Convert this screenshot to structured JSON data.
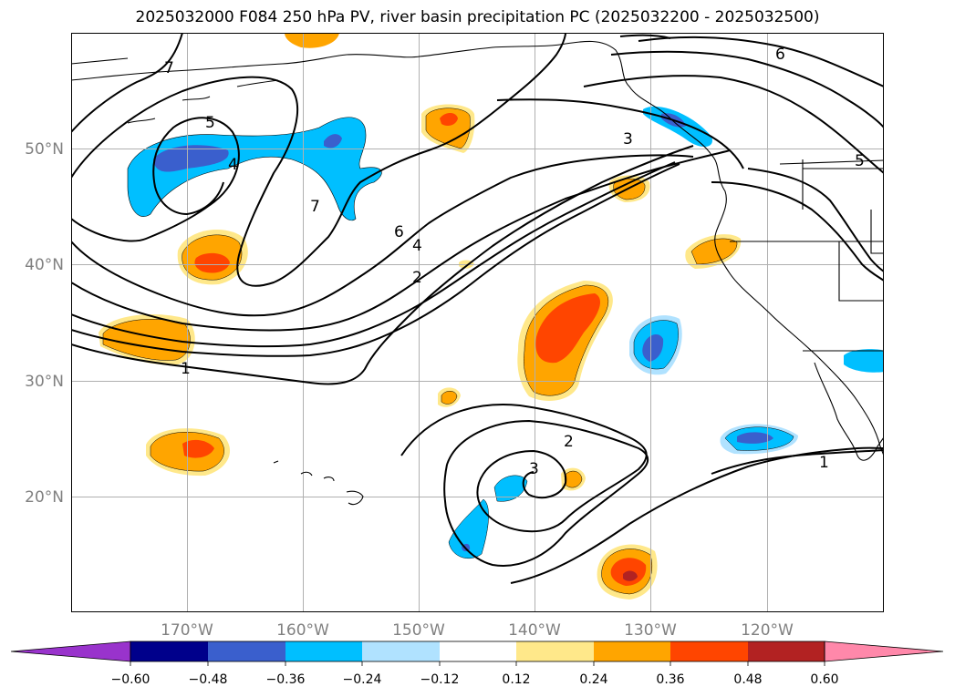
{
  "title": "2025032000 F084 250 hPa PV, river basin precipitation PC (2025032200 - 2025032500)",
  "map": {
    "lat_ticks": [
      {
        "label": "50°N",
        "lat": 50
      },
      {
        "label": "40°N",
        "lat": 40
      },
      {
        "label": "30°N",
        "lat": 30
      },
      {
        "label": "20°N",
        "lat": 20
      }
    ],
    "lon_ticks": [
      {
        "label": "170°W",
        "lon": -170
      },
      {
        "label": "160°W",
        "lon": -160
      },
      {
        "label": "150°W",
        "lon": -150
      },
      {
        "label": "140°W",
        "lon": -140
      },
      {
        "label": "130°W",
        "lon": -130
      },
      {
        "label": "120°W",
        "lon": -120
      }
    ],
    "contour_labels": [
      "7",
      "5",
      "4",
      "7",
      "6",
      "4",
      "2",
      "1",
      "3",
      "6",
      "5",
      "2",
      "3",
      "1"
    ],
    "grid": true
  },
  "colorbar": {
    "colors": [
      "#9933cc",
      "#00008b",
      "#3a5fcd",
      "#00bfff",
      "#b0e2ff",
      "#ffffff",
      "#ffe88a",
      "#ffa500",
      "#ff4500",
      "#b22222",
      "#ff88aa"
    ],
    "tick_labels": [
      "−0.60",
      "−0.48",
      "−0.36",
      "−0.24",
      "−0.12",
      "0.12",
      "0.24",
      "0.36",
      "0.48",
      "0.60"
    ],
    "extend": "both"
  }
}
